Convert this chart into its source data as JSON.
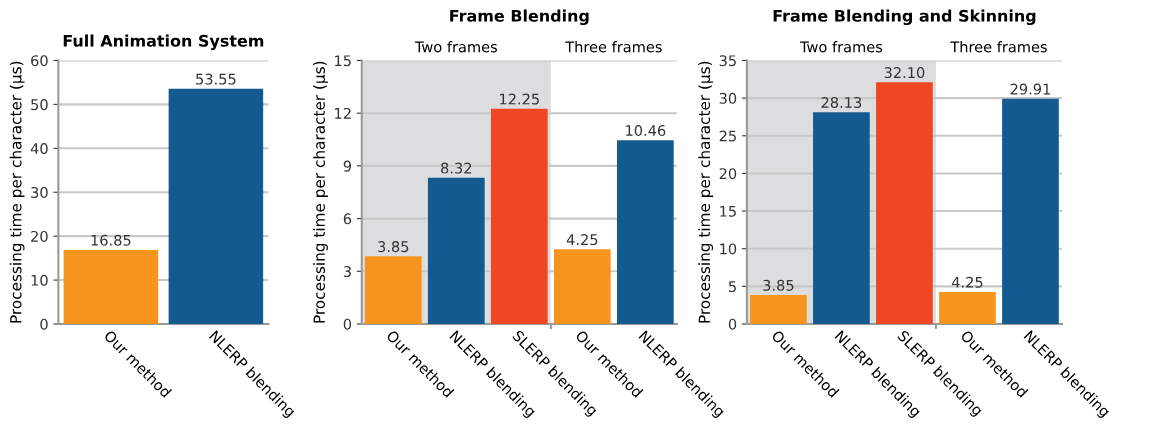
{
  "chart_data": [
    {
      "type": "bar",
      "title": "Full Animation System",
      "ylabel": "Processing time per character (μs)",
      "categories": [
        "Our method",
        "NLERP blending"
      ],
      "values": [
        16.85,
        53.55
      ],
      "colors": [
        "#f7941d",
        "#135a91"
      ],
      "value_labels": [
        "16.85",
        "53.55"
      ],
      "ylim": [
        0,
        60
      ],
      "yticks": [
        0,
        10,
        20,
        30,
        40,
        50,
        60
      ],
      "grid": "y"
    },
    {
      "type": "bar",
      "title": "Frame Blending",
      "ylabel": "Processing time per character (μs)",
      "categories": [
        "Our method",
        "NLERP blending",
        "SLERP blending",
        "Our method",
        "NLERP blending"
      ],
      "values": [
        3.85,
        8.32,
        12.25,
        4.25,
        10.46
      ],
      "colors": [
        "#f7941d",
        "#135a91",
        "#ef4623",
        "#f7941d",
        "#135a91"
      ],
      "value_labels": [
        "3.85",
        "8.32",
        "12.25",
        "4.25",
        "10.46"
      ],
      "ylim": [
        0,
        15
      ],
      "yticks": [
        0,
        3,
        6,
        9,
        12,
        15
      ],
      "grid": "y",
      "annotations": [
        "Two frames",
        "Three frames"
      ]
    },
    {
      "type": "bar",
      "title": "Frame Blending and Skinning",
      "ylabel": "Processing time per character (μs)",
      "categories": [
        "Our method",
        "NLERP blending",
        "SLERP blending",
        "Our method",
        "NLERP blending"
      ],
      "values": [
        3.85,
        28.13,
        32.1,
        4.25,
        29.91
      ],
      "colors": [
        "#f7941d",
        "#135a91",
        "#ef4623",
        "#f7941d",
        "#135a91"
      ],
      "value_labels": [
        "3.85",
        "28.13",
        "32.10",
        "4.25",
        "29.91"
      ],
      "ylim": [
        0,
        35
      ],
      "yticks": [
        0,
        5,
        10,
        15,
        20,
        25,
        30,
        35
      ],
      "grid": "y",
      "annotations": [
        "Two frames",
        "Three frames"
      ]
    }
  ]
}
